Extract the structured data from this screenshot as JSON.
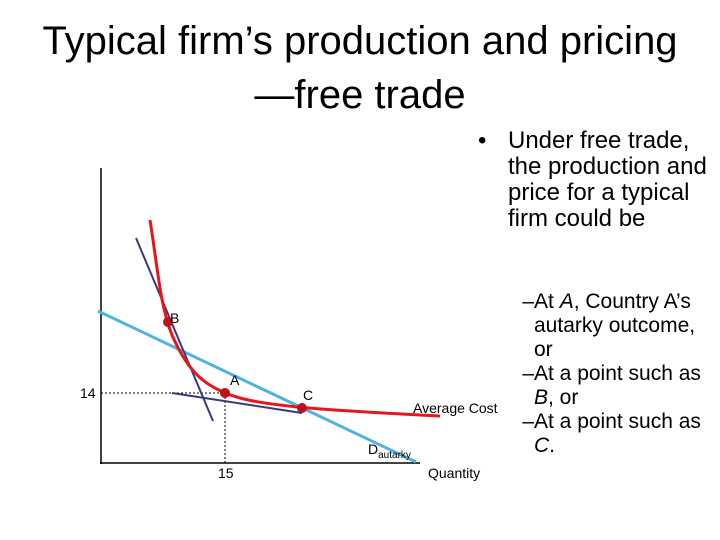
{
  "title": "Typical firm’s production and pricing—free trade",
  "bullet": "Under free trade, the production and price for a typical firm could be",
  "sub_bullets": [
    [
      "At ",
      "A",
      ", Country A’s autarky outcome, or"
    ],
    [
      "At a point such as ",
      "B",
      ", or"
    ],
    [
      "At a point such as ",
      "C",
      "."
    ]
  ],
  "diagram": {
    "labels": {
      "b": "B",
      "a": "A",
      "c": "C",
      "y_value": "14",
      "x_value": "15",
      "average_cost": "Average Cost",
      "demand": "D",
      "demand_subscript": "autarky",
      "x_axis": "Quantity"
    }
  }
}
